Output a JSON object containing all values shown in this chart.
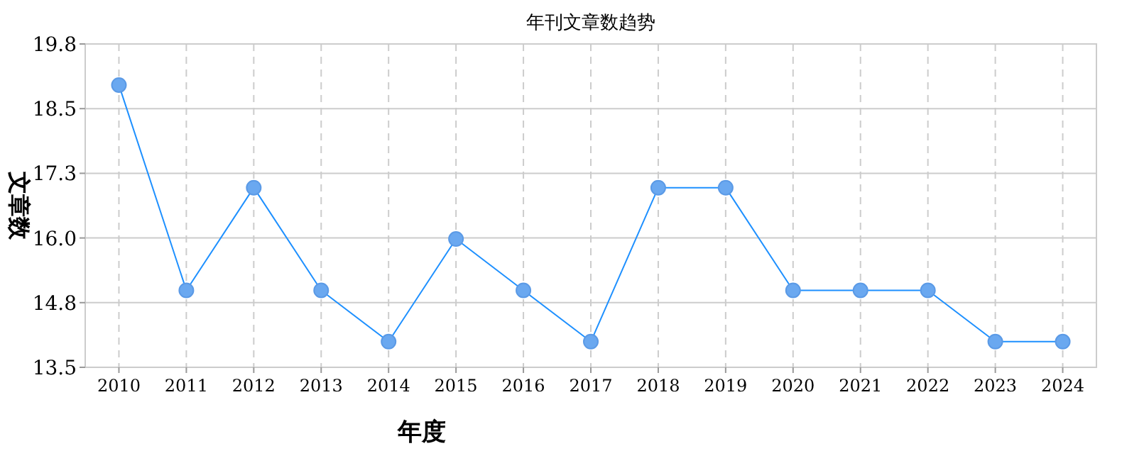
{
  "chart_data": {
    "type": "line",
    "title": "年刊文章数趋势",
    "xlabel": "年度",
    "ylabel": "文章数",
    "categories": [
      "2010",
      "2011",
      "2012",
      "2013",
      "2014",
      "2015",
      "2016",
      "2017",
      "2018",
      "2019",
      "2020",
      "2021",
      "2022",
      "2023",
      "2024"
    ],
    "series": [
      {
        "color": "#1e90ff",
        "values": [
          19,
          15,
          17,
          15,
          14,
          16,
          15,
          14,
          17,
          17,
          15,
          15,
          15,
          14,
          14
        ]
      }
    ],
    "ylim": [
      13.5,
      19.8
    ],
    "yticks": [
      {
        "value": 13.5,
        "label": "13.5"
      },
      {
        "value": 14.76,
        "label": "14.8"
      },
      {
        "value": 16.02,
        "label": "16.0"
      },
      {
        "value": 17.28,
        "label": "17.3"
      },
      {
        "value": 18.54,
        "label": "18.5"
      },
      {
        "value": 19.8,
        "label": "19.8"
      }
    ],
    "grid": true,
    "marker": "circle",
    "line_style": "solid"
  }
}
